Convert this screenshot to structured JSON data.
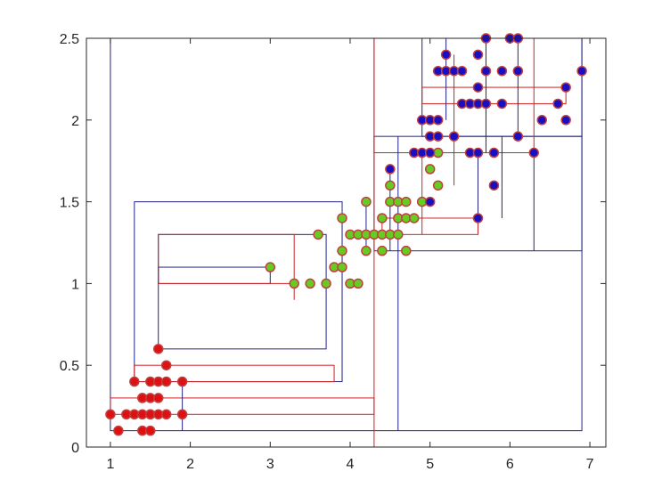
{
  "chart_data": {
    "type": "scatter",
    "title": "",
    "xlabel": "",
    "ylabel": "",
    "xlim": [
      0.7,
      7.2
    ],
    "ylim": [
      0,
      2.5
    ],
    "xticks": [
      1,
      2,
      3,
      4,
      5,
      6,
      7
    ],
    "yticks": [
      0,
      0.5,
      1,
      1.5,
      2,
      2.5
    ],
    "xtick_labels": [
      "1",
      "2",
      "3",
      "4",
      "5",
      "6",
      "7"
    ],
    "ytick_labels": [
      "0",
      "0.5",
      "1",
      "1.5",
      "2",
      "2.5"
    ],
    "grid": false,
    "box": true,
    "colors": {
      "axis": "#262626",
      "red_point_fill": "#dd1111",
      "green_point_fill": "#66cc22",
      "blue_point_fill": "#1a0fc0",
      "red_line": "#cc2222",
      "blue_line": "#222288",
      "point_edge": "#c04040"
    },
    "series": [
      {
        "color": "red",
        "x": [
          1.0,
          1.1,
          1.2,
          1.3,
          1.3,
          1.4,
          1.4,
          1.4,
          1.4,
          1.5,
          1.5,
          1.5,
          1.5,
          1.5,
          1.6,
          1.6,
          1.6,
          1.6,
          1.7,
          1.7,
          1.7,
          1.9,
          1.9
        ],
        "y": [
          0.2,
          0.1,
          0.2,
          0.2,
          0.4,
          0.3,
          0.2,
          0.1,
          0.3,
          0.2,
          0.1,
          0.3,
          0.4,
          0.2,
          0.2,
          0.4,
          0.6,
          0.3,
          0.2,
          0.4,
          0.5,
          0.2,
          0.4
        ]
      },
      {
        "color": "green",
        "x": [
          3.0,
          3.3,
          3.5,
          3.6,
          3.7,
          3.8,
          3.9,
          3.9,
          3.9,
          4.0,
          4.0,
          4.1,
          4.1,
          4.2,
          4.2,
          4.2,
          4.3,
          4.4,
          4.4,
          4.4,
          4.5,
          4.5,
          4.5,
          4.6,
          4.6,
          4.6,
          4.7,
          4.7,
          4.7,
          4.8,
          4.9,
          5.0,
          5.1,
          5.1
        ],
        "y": [
          1.1,
          1.0,
          1.0,
          1.3,
          1.0,
          1.1,
          1.1,
          1.2,
          1.4,
          1.0,
          1.3,
          1.0,
          1.3,
          1.2,
          1.3,
          1.5,
          1.3,
          1.2,
          1.3,
          1.4,
          1.3,
          1.6,
          1.5,
          1.3,
          1.5,
          1.4,
          1.2,
          1.4,
          1.5,
          1.4,
          1.5,
          1.7,
          1.6,
          1.8
        ]
      },
      {
        "color": "blue",
        "x": [
          4.5,
          4.8,
          4.9,
          4.9,
          5.0,
          5.0,
          5.0,
          5.0,
          5.1,
          5.1,
          5.1,
          5.2,
          5.2,
          5.3,
          5.3,
          5.4,
          5.4,
          5.5,
          5.5,
          5.6,
          5.6,
          5.6,
          5.6,
          5.6,
          5.7,
          5.7,
          5.7,
          5.8,
          5.8,
          5.9,
          5.9,
          6.0,
          6.1,
          6.1,
          6.1,
          6.3,
          6.4,
          6.6,
          6.7,
          6.7,
          6.9
        ],
        "y": [
          1.7,
          1.8,
          1.8,
          2.0,
          1.5,
          2.0,
          1.9,
          1.8,
          2.0,
          1.9,
          2.3,
          2.4,
          2.3,
          2.3,
          1.9,
          2.3,
          2.1,
          2.1,
          1.8,
          2.1,
          2.2,
          2.4,
          1.8,
          1.4,
          2.3,
          2.5,
          2.1,
          1.8,
          1.6,
          2.3,
          2.1,
          2.5,
          2.5,
          2.3,
          1.9,
          1.8,
          2.0,
          2.1,
          2.2,
          2.0,
          2.3
        ]
      }
    ]
  }
}
